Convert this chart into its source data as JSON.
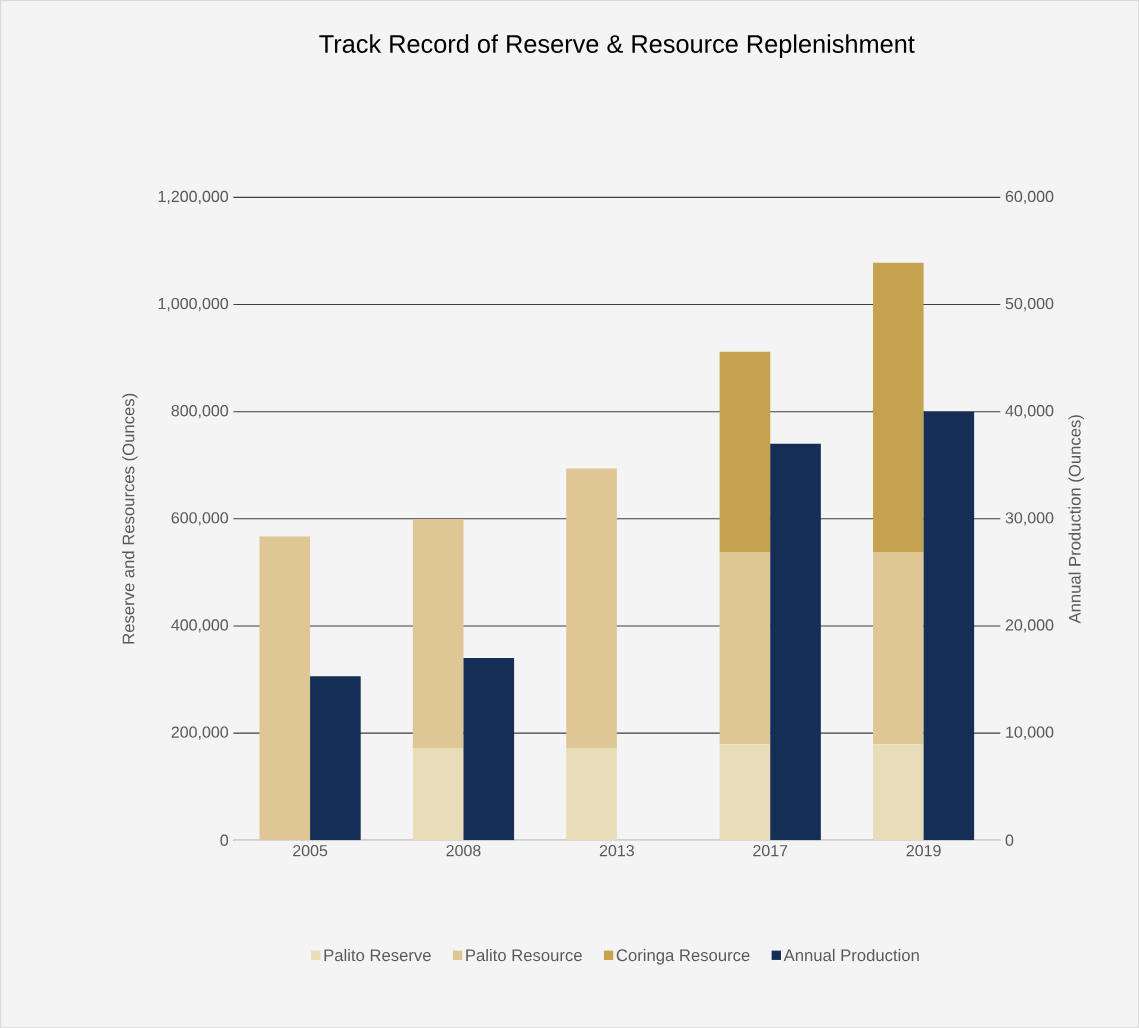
{
  "chart_data": {
    "type": "bar",
    "title": "Track Record of Reserve & Resource Replenishment",
    "categories": [
      "2005",
      "2008",
      "2013",
      "2017",
      "2019"
    ],
    "stacked": true,
    "series": [
      {
        "name": "Palito Reserve",
        "color": "#e8dcb9",
        "values": [
          0,
          172000,
          172000,
          179000,
          179000
        ]
      },
      {
        "name": "Palito Resource",
        "color": "#dec794",
        "values": [
          567000,
          427000,
          522000,
          358000,
          358000
        ]
      },
      {
        "name": "Coringa Resource",
        "color": "#c5a24f",
        "values": [
          0,
          0,
          0,
          375000,
          541000
        ]
      },
      {
        "name": "Annual Production",
        "color": "#152e56",
        "axis": "y2",
        "values": [
          15300,
          17000,
          null,
          37000,
          40000
        ]
      }
    ],
    "ylabel": "Reserve and Resources (Ounces)",
    "y2label": "Annual Production (Ounces)",
    "ylim": [
      0,
      1200000
    ],
    "yticks": [
      0,
      {
        "value": 200000,
        "label": "200,000"
      },
      {
        "value": 400000,
        "label": "400,000"
      },
      {
        "value": 600000,
        "label": "600,000"
      },
      {
        "value": 800000,
        "label": "800,000"
      },
      {
        "value": 1000000,
        "label": "1,000,000"
      },
      {
        "value": 1200000,
        "label": "1,200,000"
      }
    ],
    "y2lim": [
      0,
      60000
    ],
    "y2ticks": [
      0,
      {
        "value": 10000,
        "label": "10,000"
      },
      {
        "value": 20000,
        "label": "20,000"
      },
      {
        "value": 30000,
        "label": "30,000"
      },
      {
        "value": 40000,
        "label": "40,000"
      },
      {
        "value": 50000,
        "label": "50,000"
      },
      {
        "value": 60000,
        "label": "60,000"
      }
    ],
    "grid": "y",
    "legend": "bottom"
  }
}
